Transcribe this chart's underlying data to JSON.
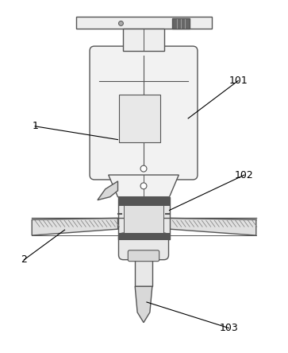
{
  "background_color": "#ffffff",
  "line_color": "#555555",
  "label_color": "#000000",
  "figsize": [
    3.63,
    4.44
  ],
  "dpi": 100
}
